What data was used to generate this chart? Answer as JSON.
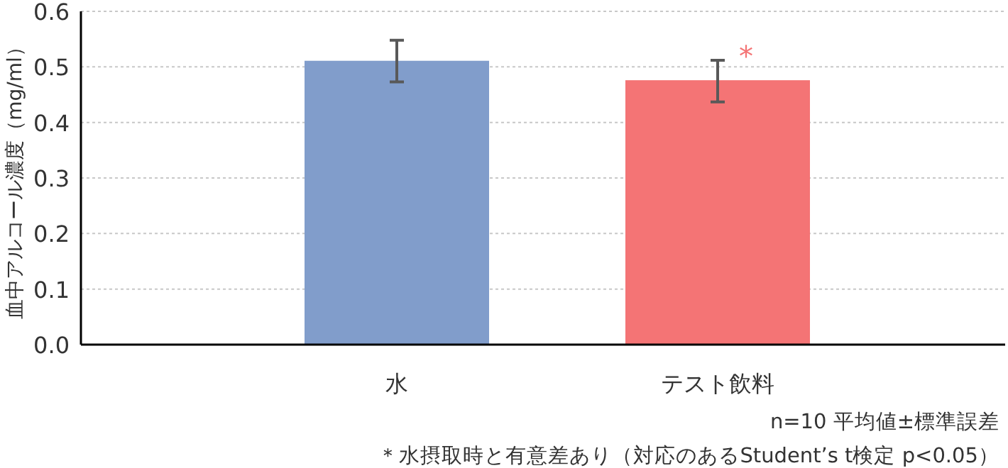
{
  "chart_data": {
    "type": "bar",
    "ylabel": "血中アルコール濃度（mg/ml）",
    "categories": [
      "水",
      "テスト飲料"
    ],
    "values": [
      0.511,
      0.476
    ],
    "colors": [
      "#819dcb",
      "#f47475"
    ],
    "errors": [
      [
        0.473,
        0.548
      ],
      [
        0.437,
        0.512
      ]
    ],
    "ylim": [
      0,
      0.6
    ],
    "yticks": [
      {
        "value": 0,
        "label": "0.0"
      },
      {
        "value": 0.1,
        "label": "0.1"
      },
      {
        "value": 0.2,
        "label": "0.2"
      },
      {
        "value": 0.3,
        "label": "0.3"
      },
      {
        "value": 0.4,
        "label": "0.4"
      },
      {
        "value": 0.5,
        "label": "0.5"
      },
      {
        "value": 0.6,
        "label": "0.6"
      }
    ],
    "grid": "y",
    "annotations": [
      {
        "text": "*",
        "x": "テスト飲料",
        "y": 0.512
      },
      "n=10  平均値±標準誤差",
      "＊水摂取時と有意差あり（対応のあるStudent’s t検定  p<0.05）"
    ]
  }
}
